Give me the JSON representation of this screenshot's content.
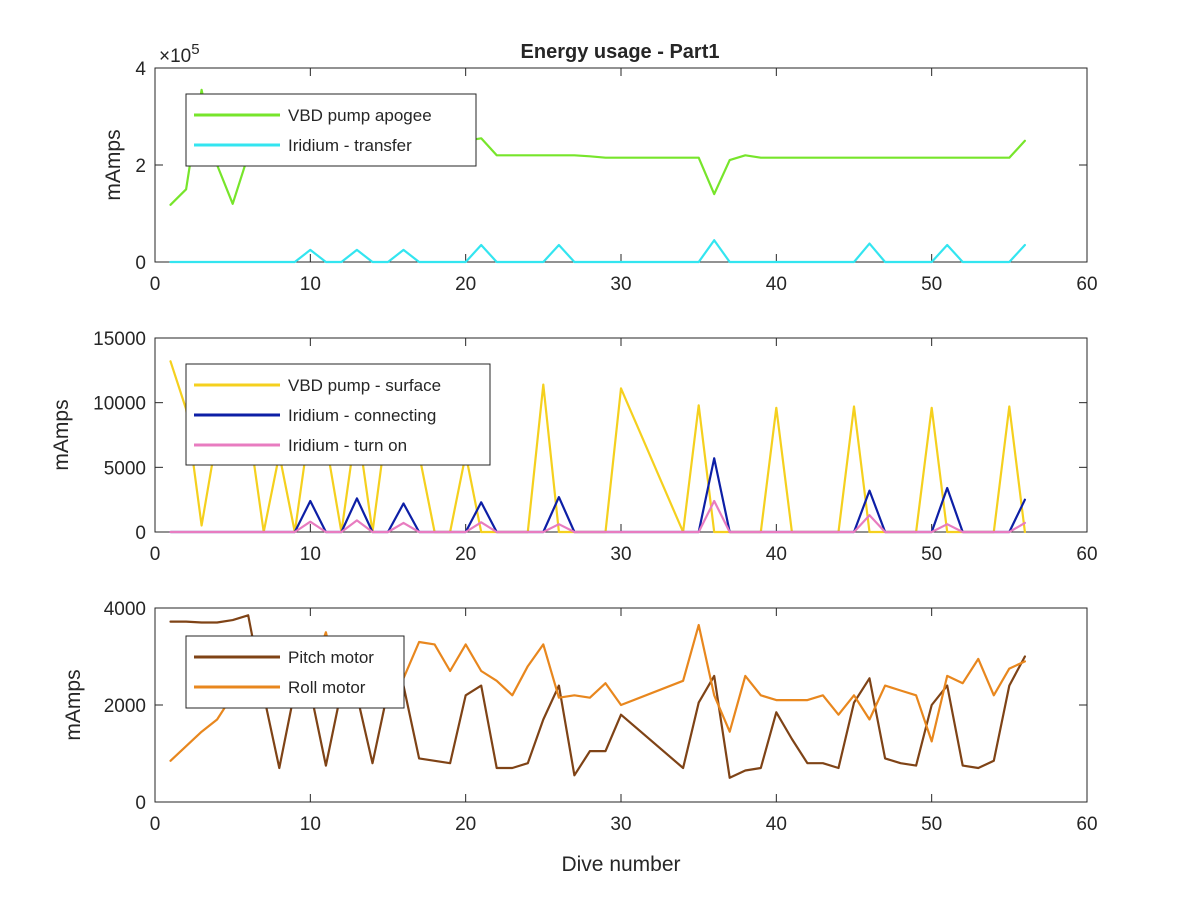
{
  "figure": {
    "title": "Energy usage - Part1",
    "xlabel": "Dive number"
  },
  "chart_data": [
    {
      "type": "line",
      "title": "Energy usage - Part1",
      "xlabel": "",
      "ylabel": "mAmps",
      "xlim": [
        0,
        60
      ],
      "ylim": [
        0,
        4
      ],
      "y_multiplier_label": "×10",
      "y_exponent": "5",
      "xticks": [
        0,
        10,
        20,
        30,
        40,
        50,
        60
      ],
      "yticks": [
        0,
        2,
        4
      ],
      "grid": false,
      "legend_position": "top-left",
      "series": [
        {
          "name": "VBD pump apogee",
          "color": "#77e52b",
          "x": [
            1,
            2,
            3,
            4,
            5,
            6,
            7,
            8,
            9,
            10,
            11,
            12,
            13,
            14,
            15,
            16,
            17,
            18,
            19,
            20,
            21,
            22,
            23,
            24,
            25,
            26,
            27,
            28,
            29,
            30,
            31,
            32,
            33,
            34,
            35,
            36,
            37,
            38,
            39,
            40,
            41,
            42,
            43,
            44,
            45,
            46,
            47,
            48,
            49,
            50,
            51,
            52,
            53,
            54,
            55,
            56
          ],
          "values": [
            1.18,
            1.5,
            3.55,
            2.0,
            1.2,
            2.2,
            2.3,
            2.35,
            2.35,
            2.4,
            2.4,
            2.45,
            2.45,
            2.45,
            2.5,
            2.5,
            2.5,
            2.5,
            2.5,
            2.5,
            2.55,
            2.2,
            2.2,
            2.2,
            2.2,
            2.2,
            2.2,
            2.18,
            2.15,
            2.15,
            2.15,
            2.15,
            2.15,
            2.15,
            2.15,
            1.4,
            2.1,
            2.2,
            2.15,
            2.15,
            2.15,
            2.15,
            2.15,
            2.15,
            2.15,
            2.15,
            2.15,
            2.15,
            2.15,
            2.15,
            2.15,
            2.15,
            2.15,
            2.15,
            2.15,
            2.5
          ]
        },
        {
          "name": "Iridium - transfer",
          "color": "#33e5f0",
          "x": [
            1,
            9,
            10,
            11,
            12,
            13,
            14,
            15,
            16,
            17,
            20,
            21,
            22,
            25,
            26,
            27,
            35,
            36,
            37,
            45,
            46,
            47,
            50,
            51,
            52,
            55,
            56
          ],
          "values": [
            0,
            0,
            0.25,
            0,
            0,
            0.25,
            0,
            0,
            0.25,
            0,
            0,
            0.35,
            0,
            0,
            0.35,
            0,
            0,
            0.45,
            0,
            0,
            0.38,
            0,
            0,
            0.35,
            0,
            0,
            0.35
          ]
        }
      ]
    },
    {
      "type": "line",
      "title": "",
      "xlabel": "",
      "ylabel": "mAmps",
      "xlim": [
        0,
        60
      ],
      "ylim": [
        0,
        15000
      ],
      "xticks": [
        0,
        10,
        20,
        30,
        40,
        50,
        60
      ],
      "yticks": [
        0,
        5000,
        10000,
        15000
      ],
      "grid": false,
      "legend_position": "top-left",
      "series": [
        {
          "name": "VBD pump - surface",
          "color": "#f5d01e",
          "x": [
            1,
            2,
            3,
            4,
            5,
            6,
            7,
            8,
            9,
            10,
            11,
            12,
            13,
            14,
            15,
            16,
            17,
            18,
            19,
            20,
            21,
            22,
            23,
            24,
            25,
            26,
            27,
            28,
            29,
            30,
            34,
            35,
            36,
            37,
            38,
            39,
            40,
            41,
            42,
            43,
            44,
            45,
            46,
            47,
            48,
            49,
            50,
            51,
            52,
            53,
            54,
            55,
            56
          ],
          "values": [
            13200,
            9500,
            500,
            7500,
            9500,
            8500,
            0,
            6000,
            0,
            8500,
            7000,
            0,
            8500,
            0,
            9000,
            6000,
            6000,
            0,
            0,
            6000,
            0,
            0,
            0,
            0,
            11400,
            0,
            0,
            0,
            0,
            11100,
            0,
            9800,
            0,
            0,
            0,
            0,
            9600,
            0,
            0,
            0,
            0,
            9700,
            0,
            0,
            0,
            0,
            9600,
            0,
            0,
            0,
            0,
            9700,
            0
          ]
        },
        {
          "name": "Iridium - connecting",
          "color": "#0d1fa6",
          "x": [
            1,
            9,
            10,
            11,
            12,
            13,
            14,
            15,
            16,
            17,
            20,
            21,
            22,
            25,
            26,
            27,
            35,
            36,
            37,
            45,
            46,
            47,
            50,
            51,
            52,
            55,
            56
          ],
          "values": [
            0,
            0,
            2400,
            0,
            0,
            2600,
            0,
            0,
            2200,
            0,
            0,
            2300,
            0,
            0,
            2700,
            0,
            0,
            5700,
            0,
            0,
            3200,
            0,
            0,
            3400,
            0,
            0,
            2500
          ]
        },
        {
          "name": "Iridium - turn on",
          "color": "#e87cc0",
          "x": [
            1,
            9,
            10,
            11,
            12,
            13,
            14,
            15,
            16,
            17,
            20,
            21,
            22,
            25,
            26,
            27,
            35,
            36,
            37,
            45,
            46,
            47,
            50,
            51,
            52,
            55,
            56
          ],
          "values": [
            0,
            0,
            800,
            0,
            0,
            900,
            0,
            0,
            700,
            0,
            0,
            750,
            0,
            0,
            600,
            0,
            0,
            2400,
            0,
            0,
            1300,
            0,
            0,
            600,
            0,
            0,
            700
          ]
        }
      ]
    },
    {
      "type": "line",
      "title": "",
      "xlabel": "Dive number",
      "ylabel": "mAmps",
      "xlim": [
        0,
        60
      ],
      "ylim": [
        0,
        4000
      ],
      "xticks": [
        0,
        10,
        20,
        30,
        40,
        50,
        60
      ],
      "yticks": [
        0,
        2000,
        4000
      ],
      "grid": false,
      "legend_position": "top-left",
      "series": [
        {
          "name": "Pitch motor",
          "color": "#7f4316",
          "x": [
            1,
            2,
            3,
            4,
            5,
            6,
            7,
            8,
            9,
            10,
            11,
            12,
            13,
            14,
            15,
            16,
            17,
            18,
            19,
            20,
            21,
            22,
            23,
            24,
            25,
            26,
            27,
            28,
            29,
            30,
            34,
            35,
            36,
            37,
            38,
            39,
            40,
            41,
            42,
            43,
            44,
            45,
            46,
            47,
            48,
            49,
            50,
            51,
            52,
            53,
            54,
            55,
            56
          ],
          "values": [
            3720,
            3720,
            3700,
            3700,
            3750,
            3850,
            2200,
            700,
            2300,
            2300,
            750,
            2300,
            2200,
            800,
            2300,
            2400,
            900,
            850,
            800,
            2200,
            2400,
            700,
            700,
            800,
            1700,
            2400,
            550,
            1050,
            1050,
            1800,
            700,
            2050,
            2600,
            500,
            650,
            700,
            1850,
            1300,
            800,
            800,
            700,
            2050,
            2550,
            900,
            800,
            750,
            2000,
            2400,
            750,
            700,
            850,
            2400,
            3000
          ]
        },
        {
          "name": "Roll motor",
          "color": "#e8871e",
          "x": [
            1,
            2,
            3,
            4,
            5,
            6,
            7,
            8,
            9,
            10,
            11,
            12,
            13,
            14,
            15,
            16,
            17,
            18,
            19,
            20,
            21,
            22,
            23,
            24,
            25,
            26,
            27,
            28,
            29,
            30,
            34,
            35,
            36,
            37,
            38,
            39,
            40,
            41,
            42,
            43,
            44,
            45,
            46,
            47,
            48,
            49,
            50,
            51,
            52,
            53,
            54,
            55,
            56
          ],
          "values": [
            850,
            1150,
            1450,
            1700,
            2200,
            2600,
            2800,
            2800,
            2700,
            2600,
            3500,
            2100,
            2400,
            2300,
            2500,
            2550,
            3300,
            3250,
            2700,
            3250,
            2700,
            2500,
            2200,
            2800,
            3250,
            2150,
            2200,
            2150,
            2450,
            2000,
            2500,
            3650,
            2200,
            1450,
            2600,
            2200,
            2100,
            2100,
            2100,
            2200,
            1800,
            2200,
            1700,
            2400,
            2300,
            2200,
            1250,
            2600,
            2450,
            2950,
            2200,
            2750,
            2900
          ]
        }
      ]
    }
  ]
}
